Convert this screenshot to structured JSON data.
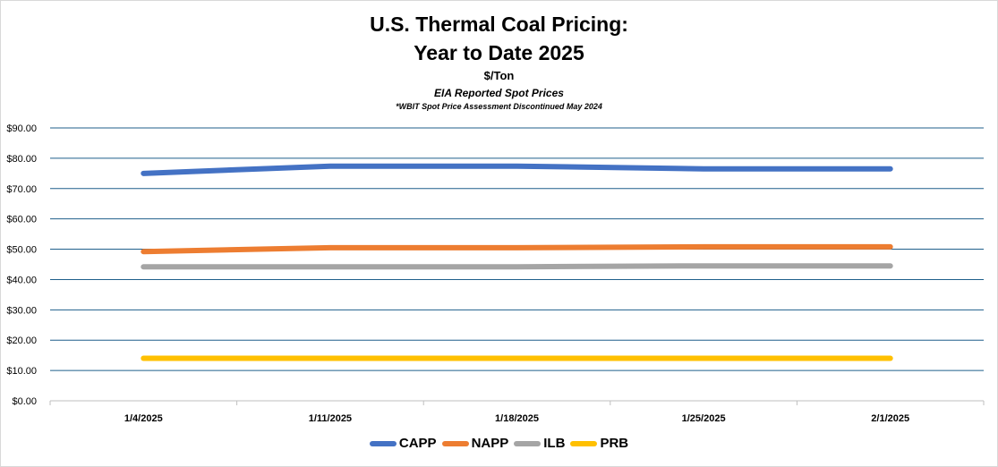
{
  "header": {
    "title_line1": "U.S. Thermal Coal Pricing:",
    "title_line2": "Year to Date 2025",
    "units": "$/Ton",
    "subtitle": "EIA Reported Spot Prices",
    "note": "*WBIT Spot Price Assessment Discontinued May 2024"
  },
  "chart_data": {
    "type": "line",
    "title": "U.S. Thermal Coal Pricing: Year to Date 2025",
    "subtitle": "EIA Reported Spot Prices",
    "ylabel": "$/Ton",
    "categories": [
      "1/4/2025",
      "1/11/2025",
      "1/18/2025",
      "1/25/2025",
      "2/1/2025"
    ],
    "ylim": [
      0,
      90
    ],
    "y_ticks": [
      "$0.00",
      "$10.00",
      "$20.00",
      "$30.00",
      "$40.00",
      "$50.00",
      "$60.00",
      "$70.00",
      "$80.00",
      "$90.00"
    ],
    "grid": true,
    "legend_position": "bottom",
    "series": [
      {
        "name": "CAPP",
        "color": "#4472c4",
        "values": [
          75.0,
          77.4,
          77.4,
          76.5,
          76.5
        ]
      },
      {
        "name": "NAPP",
        "color": "#ed7d31",
        "values": [
          49.2,
          50.5,
          50.5,
          50.8,
          50.8
        ]
      },
      {
        "name": "ILB",
        "color": "#a5a5a5",
        "values": [
          44.2,
          44.2,
          44.2,
          44.5,
          44.5
        ]
      },
      {
        "name": "PRB",
        "color": "#ffc000",
        "values": [
          14.0,
          14.0,
          14.0,
          14.0,
          14.0
        ]
      }
    ]
  }
}
